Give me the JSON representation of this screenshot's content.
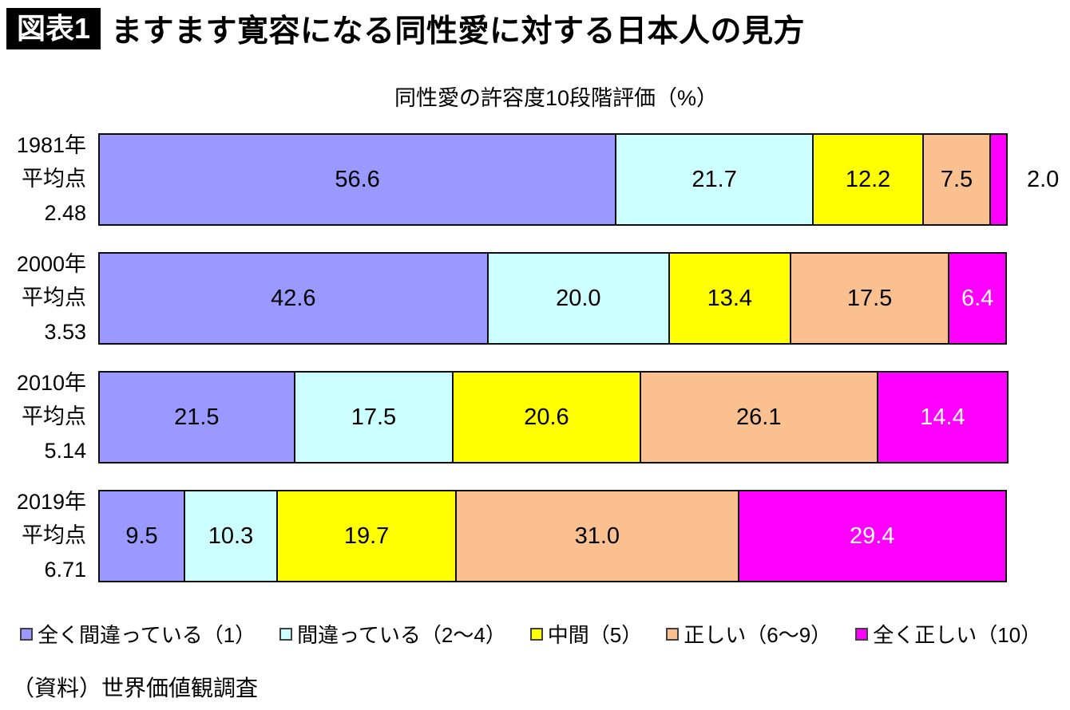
{
  "header": {
    "badge": "図表1",
    "title": "ますます寛容になる同性愛に対する日本人の見方"
  },
  "chart_data": {
    "type": "bar",
    "orientation": "horizontal",
    "stacked": true,
    "title": "同性愛の許容度10段階評価（%）",
    "unit": "%",
    "xlim": [
      0,
      100
    ],
    "grid": false,
    "legend_position": "bottom",
    "categories": [
      "1981年 平均点 2.48",
      "2000年 平均点 3.53",
      "2010年 平均点 5.14",
      "2019年 平均点 6.71"
    ],
    "rows": [
      {
        "label_lines": [
          "1981年",
          "平均点",
          "2.48"
        ]
      },
      {
        "label_lines": [
          "2000年",
          "平均点",
          "3.53"
        ]
      },
      {
        "label_lines": [
          "2010年",
          "平均点",
          "5.14"
        ]
      },
      {
        "label_lines": [
          "2019年",
          "平均点",
          "6.71"
        ]
      }
    ],
    "series": [
      {
        "name": "全く間違っている（1）",
        "color": "#9999FF",
        "label_color": "#000000",
        "values": [
          56.6,
          42.6,
          21.5,
          9.5
        ]
      },
      {
        "name": "間違っている（2～4）",
        "color": "#CCFFFF",
        "label_color": "#000000",
        "values": [
          21.7,
          20.0,
          17.5,
          10.3
        ]
      },
      {
        "name": "中間（5）",
        "color": "#FFFF00",
        "label_color": "#000000",
        "values": [
          12.2,
          13.4,
          20.6,
          19.7
        ]
      },
      {
        "name": "正しい（6～9）",
        "color": "#FAC090",
        "label_color": "#000000",
        "values": [
          7.5,
          17.5,
          26.1,
          31.0
        ]
      },
      {
        "name": "全く正しい（10）",
        "color": "#FF00FF",
        "label_color": "#FFFFFF",
        "values": [
          2.0,
          6.4,
          14.4,
          29.4
        ]
      }
    ]
  },
  "source": "（資料）世界価値観調査"
}
